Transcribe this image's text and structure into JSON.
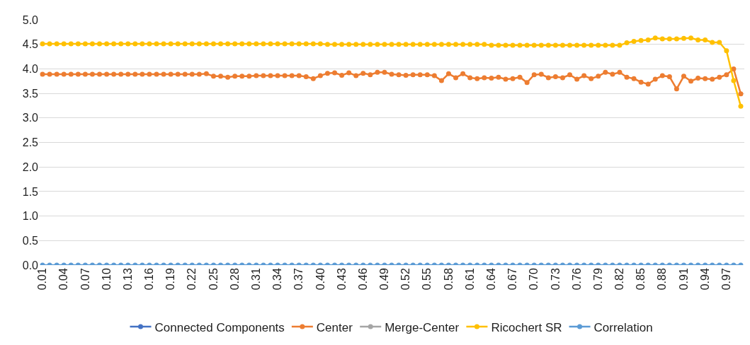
{
  "chart_data": {
    "type": "line",
    "categories": [
      "0.01",
      null,
      null,
      "0.04",
      null,
      null,
      "0.07",
      null,
      null,
      "0.10",
      null,
      null,
      "0.13",
      null,
      null,
      "0.16",
      null,
      null,
      "0.19",
      null,
      null,
      "0.22",
      null,
      null,
      "0.25",
      null,
      null,
      "0.28",
      null,
      null,
      "0.31",
      null,
      null,
      "0.34",
      null,
      null,
      "0.37",
      null,
      null,
      "0.40",
      null,
      null,
      "0.43",
      null,
      null,
      "0.46",
      null,
      null,
      "0.49",
      null,
      null,
      "0.52",
      null,
      null,
      "0.55",
      null,
      null,
      "0.58",
      null,
      null,
      "0.61",
      null,
      null,
      "0.64",
      null,
      null,
      "0.67",
      null,
      null,
      "0.70",
      null,
      null,
      "0.73",
      null,
      null,
      "0.76",
      null,
      null,
      "0.79",
      null,
      null,
      "0.82",
      null,
      null,
      "0.85",
      null,
      null,
      "0.88",
      null,
      null,
      "0.91",
      null,
      null,
      "0.94",
      null,
      null,
      "0.97",
      null,
      null
    ],
    "series": [
      {
        "name": "Connected Components",
        "color": "#4472c4",
        "values": [
          null,
          null,
          null,
          null,
          null,
          null,
          null,
          null,
          null,
          null,
          null,
          null,
          null,
          null,
          null,
          null,
          null,
          null,
          null,
          null,
          null,
          null,
          null,
          null,
          null,
          null,
          null,
          null,
          null,
          null,
          null,
          null,
          null,
          null,
          null,
          null,
          null,
          null,
          null,
          null,
          null,
          null,
          null,
          null,
          null,
          null,
          null,
          null,
          null,
          null,
          null,
          null,
          null,
          null,
          null,
          null,
          null,
          null,
          null,
          null,
          null,
          null,
          null,
          null,
          null,
          null,
          null,
          null,
          null,
          null,
          null,
          null,
          null,
          null,
          null,
          null,
          null,
          null,
          null,
          null,
          null,
          null,
          null,
          null,
          null,
          null,
          null,
          null,
          null,
          null,
          null,
          null,
          null,
          null,
          null,
          null,
          null,
          null,
          null
        ]
      },
      {
        "name": "Center",
        "color": "#ed7d31",
        "values": [
          3.89,
          3.89,
          3.89,
          3.89,
          3.89,
          3.89,
          3.89,
          3.89,
          3.89,
          3.89,
          3.89,
          3.89,
          3.89,
          3.89,
          3.89,
          3.89,
          3.89,
          3.89,
          3.89,
          3.89,
          3.89,
          3.89,
          3.89,
          3.9,
          3.85,
          3.85,
          3.83,
          3.85,
          3.85,
          3.85,
          3.86,
          3.86,
          3.86,
          3.86,
          3.86,
          3.86,
          3.86,
          3.84,
          3.8,
          3.86,
          3.91,
          3.92,
          3.87,
          3.92,
          3.86,
          3.91,
          3.88,
          3.93,
          3.93,
          3.89,
          3.88,
          3.87,
          3.88,
          3.88,
          3.88,
          3.86,
          3.76,
          3.9,
          3.82,
          3.9,
          3.82,
          3.8,
          3.82,
          3.81,
          3.83,
          3.79,
          3.8,
          3.83,
          3.72,
          3.88,
          3.89,
          3.82,
          3.84,
          3.82,
          3.88,
          3.79,
          3.86,
          3.8,
          3.85,
          3.93,
          3.89,
          3.93,
          3.83,
          3.8,
          3.73,
          3.69,
          3.79,
          3.86,
          3.84,
          3.59,
          3.85,
          3.75,
          3.81,
          3.8,
          3.79,
          3.83,
          3.88,
          4.0,
          3.49
        ]
      },
      {
        "name": "Merge-Center",
        "color": "#a5a5a5",
        "values": [
          null,
          null,
          null,
          null,
          null,
          null,
          null,
          null,
          null,
          null,
          null,
          null,
          null,
          null,
          null,
          null,
          null,
          null,
          null,
          null,
          null,
          null,
          null,
          null,
          null,
          null,
          null,
          null,
          null,
          null,
          null,
          null,
          null,
          null,
          null,
          null,
          null,
          null,
          null,
          null,
          null,
          null,
          null,
          null,
          null,
          null,
          null,
          null,
          null,
          null,
          null,
          null,
          null,
          null,
          null,
          null,
          null,
          null,
          null,
          null,
          null,
          null,
          null,
          null,
          null,
          null,
          null,
          null,
          null,
          null,
          null,
          null,
          null,
          null,
          null,
          null,
          null,
          null,
          null,
          null,
          null,
          null,
          null,
          null,
          null,
          null,
          null,
          null,
          null,
          null,
          null,
          null,
          null,
          null,
          null,
          null,
          null,
          null,
          null
        ]
      },
      {
        "name": "Ricochert SR",
        "color": "#ffc000",
        "values": [
          4.51,
          4.51,
          4.51,
          4.51,
          4.51,
          4.51,
          4.51,
          4.51,
          4.51,
          4.51,
          4.51,
          4.51,
          4.51,
          4.51,
          4.51,
          4.51,
          4.51,
          4.51,
          4.51,
          4.51,
          4.51,
          4.51,
          4.51,
          4.51,
          4.51,
          4.51,
          4.51,
          4.51,
          4.51,
          4.51,
          4.51,
          4.51,
          4.51,
          4.51,
          4.51,
          4.51,
          4.51,
          4.51,
          4.51,
          4.51,
          4.5,
          4.5,
          4.5,
          4.5,
          4.5,
          4.5,
          4.5,
          4.5,
          4.5,
          4.5,
          4.5,
          4.5,
          4.5,
          4.5,
          4.5,
          4.5,
          4.5,
          4.5,
          4.5,
          4.5,
          4.5,
          4.5,
          4.5,
          4.48,
          4.48,
          4.48,
          4.48,
          4.48,
          4.48,
          4.48,
          4.48,
          4.48,
          4.48,
          4.48,
          4.48,
          4.48,
          4.48,
          4.48,
          4.48,
          4.48,
          4.48,
          4.48,
          4.53,
          4.56,
          4.58,
          4.59,
          4.63,
          4.61,
          4.61,
          4.61,
          4.62,
          4.63,
          4.59,
          4.59,
          4.54,
          4.54,
          4.37,
          3.76,
          3.24
        ]
      },
      {
        "name": "Correlation",
        "color": "#5b9bd5",
        "values": [
          0,
          0,
          0,
          0,
          0,
          0,
          0,
          0,
          0,
          0,
          0,
          0,
          0,
          0,
          0,
          0,
          0,
          0,
          0,
          0,
          0,
          0,
          0,
          0,
          0,
          0,
          0,
          0,
          0,
          0,
          0,
          0,
          0,
          0,
          0,
          0,
          0,
          0,
          0,
          0,
          0,
          0,
          0,
          0,
          0,
          0,
          0,
          0,
          0,
          0,
          0,
          0,
          0,
          0,
          0,
          0,
          0,
          0,
          0,
          0,
          0,
          0,
          0,
          0,
          0,
          0,
          0,
          0,
          0,
          0,
          0,
          0,
          0,
          0,
          0,
          0,
          0,
          0,
          0,
          0,
          0,
          0,
          0,
          0,
          0,
          0,
          0,
          0,
          0,
          0,
          0,
          0,
          0,
          0,
          0,
          0,
          0,
          0,
          0
        ]
      }
    ],
    "ylim": [
      0,
      5
    ],
    "yticks": [
      {
        "value": 0,
        "label": "0.0"
      },
      {
        "value": 0.5,
        "label": "0.5"
      },
      {
        "value": 1,
        "label": "1.0"
      },
      {
        "value": 1.5,
        "label": "1.5"
      },
      {
        "value": 2,
        "label": "2.0"
      },
      {
        "value": 2.5,
        "label": "2.5"
      },
      {
        "value": 3,
        "label": "3.0"
      },
      {
        "value": 3.5,
        "label": "3.5"
      },
      {
        "value": 4,
        "label": "4.0"
      },
      {
        "value": 4.5,
        "label": "4.5"
      },
      {
        "value": 5,
        "label": "5.0"
      }
    ],
    "grid": "y",
    "legend": "bottom",
    "marker": "circle",
    "line_style": "solid"
  }
}
